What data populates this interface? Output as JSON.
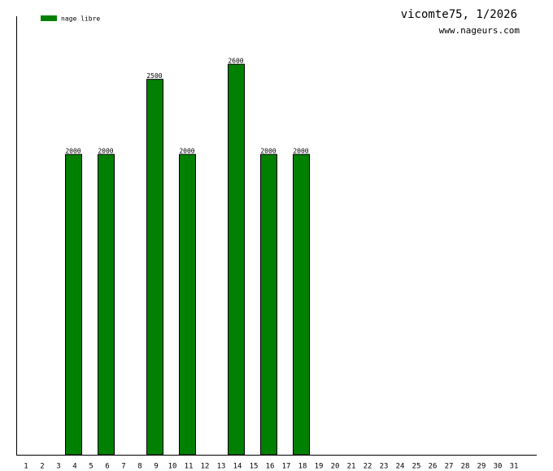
{
  "chart_data": {
    "type": "bar",
    "title": "vicomte75, 1/2026",
    "subtitle": "www.nageurs.com",
    "categories": [
      "1",
      "2",
      "3",
      "4",
      "5",
      "6",
      "7",
      "8",
      "9",
      "10",
      "11",
      "12",
      "13",
      "14",
      "15",
      "16",
      "17",
      "18",
      "19",
      "20",
      "21",
      "22",
      "23",
      "24",
      "25",
      "26",
      "27",
      "28",
      "29",
      "30",
      "31"
    ],
    "series": [
      {
        "name": "nage libre",
        "color": "#008000",
        "values": [
          null,
          null,
          null,
          2000,
          null,
          2000,
          null,
          null,
          2500,
          null,
          2000,
          null,
          null,
          2600,
          null,
          2000,
          null,
          2000,
          null,
          null,
          null,
          null,
          null,
          null,
          null,
          null,
          null,
          null,
          null,
          null,
          null
        ]
      }
    ],
    "ylim": [
      0,
      2920
    ]
  }
}
